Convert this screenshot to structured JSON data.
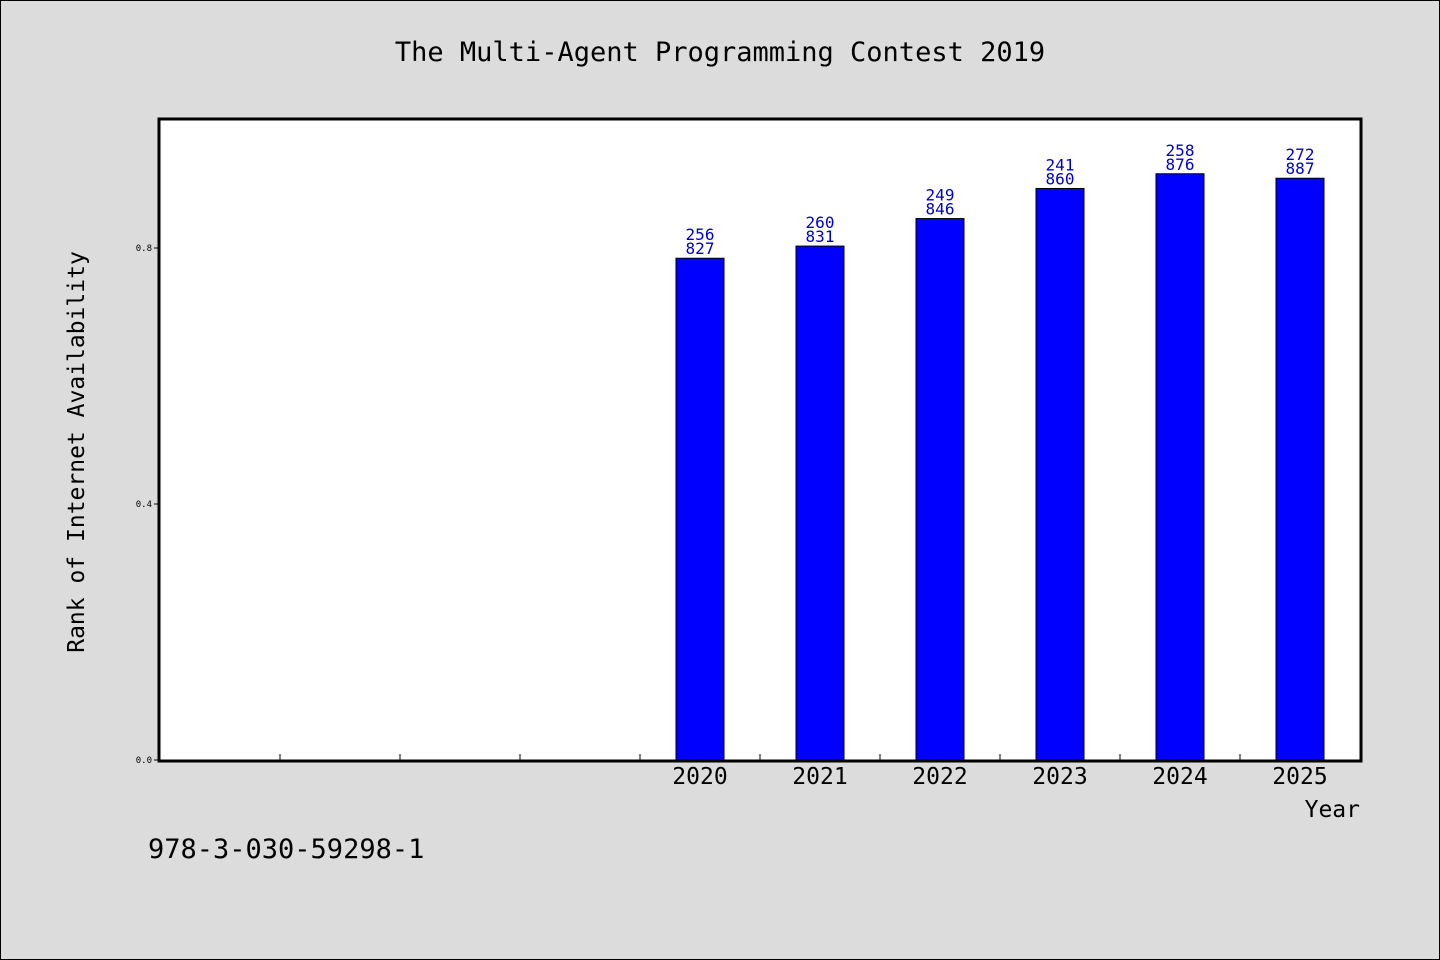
{
  "chart_data": {
    "type": "bar",
    "title": "The Multi-Agent Programming Contest 2019",
    "xlabel": "Year",
    "ylabel": "Rank of Internet Availability",
    "categories": [
      "",
      "",
      "",
      "",
      "2020",
      "2021",
      "2022",
      "2023",
      "2024",
      "2025"
    ],
    "series": [
      {
        "values": [
          null,
          null,
          null,
          null,
          0.784,
          0.803,
          0.846,
          0.893,
          0.916,
          0.909
        ],
        "labels_top": [
          "",
          "",
          "",
          "",
          "256",
          "260",
          "249",
          "241",
          "258",
          "272"
        ],
        "labels_bottom": [
          "",
          "",
          "",
          "",
          "827",
          "831",
          "846",
          "860",
          "876",
          "887"
        ],
        "color": "#0000ff"
      }
    ],
    "ylim": [
      0,
      1.0
    ],
    "yticks": [
      0.0,
      0.4,
      0.8
    ],
    "ytick_labels": [
      "0.0",
      "0.4",
      "0.8"
    ],
    "grid": false,
    "legend": "none"
  },
  "footer": {
    "identifier": "978-3-030-59298-1"
  },
  "colors": {
    "background": "#dcdcdc",
    "plot_background": "#ffffff",
    "bar": "#0000ff",
    "label": "#0000cc"
  }
}
